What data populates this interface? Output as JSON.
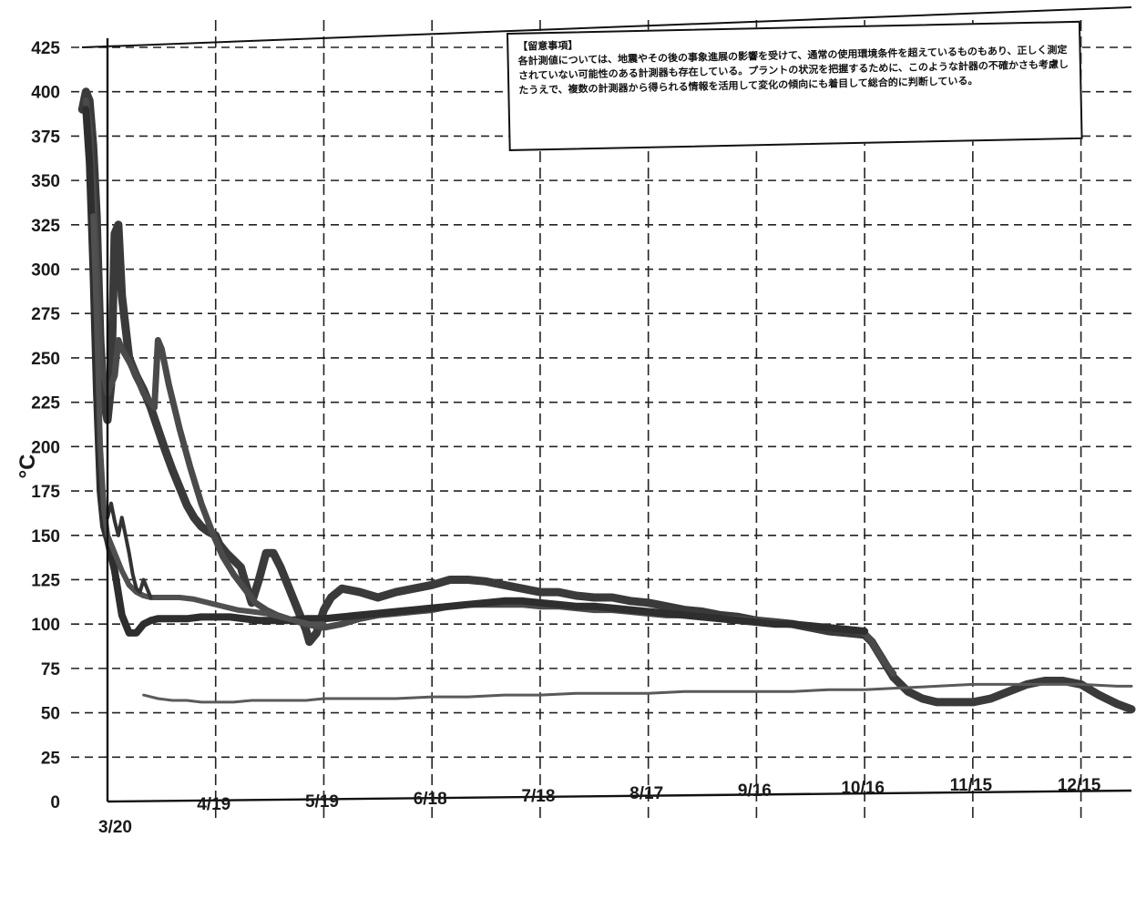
{
  "note": {
    "heading": "【留意事項】",
    "body": "各計測値については、地震やその後の事象進展の影響を受けて、通常の使用環境条件を超えているものもあり、正しく測定されていない可能性のある計測器も存在している。プラントの状況を把握するために、このような計器の不確かさも考慮したうえで、複数の計測器から得られる情報を活用して変化の傾向にも着目して総合的に判断している。"
  },
  "chart_data": {
    "type": "line",
    "title": "",
    "xlabel": "",
    "ylabel": "°C",
    "ylim": [
      0,
      425
    ],
    "yticks": [
      0,
      25,
      50,
      75,
      100,
      125,
      150,
      175,
      200,
      225,
      250,
      275,
      300,
      325,
      350,
      375,
      400,
      425
    ],
    "xlim": [
      0,
      284
    ],
    "x_ticks": [
      {
        "label": "3/20",
        "x": 0
      },
      {
        "label": "4/19",
        "x": 30
      },
      {
        "label": "5/19",
        "x": 60
      },
      {
        "label": "6/18",
        "x": 90
      },
      {
        "label": "7/18",
        "x": 120
      },
      {
        "label": "8/17",
        "x": 150
      },
      {
        "label": "9/16",
        "x": 180
      },
      {
        "label": "10/16",
        "x": 210
      },
      {
        "label": "11/15",
        "x": 240
      },
      {
        "label": "12/15",
        "x": 270
      }
    ],
    "grid": true,
    "series": [
      {
        "color": "#3a3a3a",
        "width": 9,
        "points": [
          [
            -7,
            390
          ],
          [
            -6,
            400
          ],
          [
            -5,
            395
          ],
          [
            -4,
            370
          ],
          [
            -3,
            330
          ],
          [
            -2,
            260
          ],
          [
            -1,
            225
          ],
          [
            0,
            215
          ],
          [
            1,
            235
          ],
          [
            2,
            320
          ],
          [
            3,
            325
          ],
          [
            4,
            285
          ],
          [
            6,
            250
          ],
          [
            8,
            240
          ],
          [
            10,
            232
          ],
          [
            12,
            222
          ],
          [
            14,
            210
          ],
          [
            16,
            198
          ],
          [
            18,
            187
          ],
          [
            20,
            177
          ],
          [
            22,
            167
          ],
          [
            24,
            160
          ],
          [
            26,
            155
          ],
          [
            28,
            152
          ],
          [
            30,
            150
          ],
          [
            31,
            145
          ],
          [
            33,
            140
          ],
          [
            35,
            136
          ],
          [
            37,
            132
          ],
          [
            38,
            125
          ],
          [
            40,
            112
          ],
          [
            42,
            125
          ],
          [
            44,
            140
          ],
          [
            46,
            140
          ],
          [
            48,
            132
          ],
          [
            50,
            122
          ],
          [
            52,
            112
          ],
          [
            54,
            102
          ],
          [
            55,
            97
          ],
          [
            56,
            90
          ],
          [
            58,
            95
          ],
          [
            60,
            108
          ],
          [
            62,
            115
          ],
          [
            65,
            120
          ],
          [
            70,
            118
          ],
          [
            75,
            115
          ],
          [
            80,
            118
          ],
          [
            85,
            120
          ],
          [
            90,
            122
          ],
          [
            95,
            125
          ],
          [
            100,
            125
          ],
          [
            105,
            124
          ],
          [
            110,
            122
          ],
          [
            115,
            120
          ],
          [
            120,
            118
          ],
          [
            125,
            118
          ],
          [
            130,
            116
          ],
          [
            135,
            115
          ],
          [
            140,
            115
          ],
          [
            145,
            113
          ],
          [
            150,
            112
          ],
          [
            155,
            110
          ],
          [
            160,
            108
          ],
          [
            165,
            107
          ],
          [
            170,
            105
          ],
          [
            175,
            104
          ],
          [
            180,
            102
          ],
          [
            185,
            101
          ],
          [
            190,
            100
          ],
          [
            195,
            98
          ],
          [
            200,
            96
          ],
          [
            205,
            95
          ],
          [
            210,
            94
          ],
          [
            212,
            90
          ],
          [
            215,
            80
          ],
          [
            218,
            70
          ],
          [
            222,
            62
          ],
          [
            226,
            58
          ],
          [
            230,
            56
          ],
          [
            235,
            56
          ],
          [
            240,
            56
          ],
          [
            245,
            58
          ],
          [
            250,
            62
          ],
          [
            255,
            66
          ],
          [
            260,
            68
          ],
          [
            265,
            68
          ],
          [
            270,
            66
          ],
          [
            275,
            60
          ],
          [
            280,
            55
          ],
          [
            284,
            52
          ]
        ]
      },
      {
        "color": "#4a4a4a",
        "width": 7,
        "points": [
          [
            -6,
            395
          ],
          [
            -5,
            380
          ],
          [
            -4,
            345
          ],
          [
            -3,
            300
          ],
          [
            -2,
            250
          ],
          [
            0,
            230
          ],
          [
            2,
            240
          ],
          [
            3,
            260
          ],
          [
            4,
            255
          ],
          [
            6,
            248
          ],
          [
            8,
            240
          ],
          [
            10,
            230
          ],
          [
            13,
            222
          ],
          [
            14,
            260
          ],
          [
            15,
            255
          ],
          [
            17,
            235
          ],
          [
            20,
            210
          ],
          [
            23,
            188
          ],
          [
            26,
            168
          ],
          [
            29,
            152
          ],
          [
            32,
            138
          ],
          [
            35,
            128
          ],
          [
            38,
            120
          ],
          [
            41,
            112
          ],
          [
            44,
            108
          ],
          [
            47,
            105
          ],
          [
            50,
            103
          ],
          [
            55,
            100
          ],
          [
            60,
            98
          ],
          [
            65,
            100
          ],
          [
            70,
            103
          ],
          [
            75,
            105
          ],
          [
            80,
            106
          ],
          [
            85,
            107
          ],
          [
            90,
            108
          ],
          [
            95,
            110
          ],
          [
            100,
            111
          ],
          [
            105,
            111
          ],
          [
            110,
            111
          ],
          [
            115,
            111
          ],
          [
            120,
            110
          ],
          [
            125,
            110
          ],
          [
            130,
            109
          ],
          [
            135,
            108
          ],
          [
            140,
            108
          ],
          [
            145,
            107
          ],
          [
            150,
            106
          ],
          [
            155,
            105
          ],
          [
            160,
            105
          ],
          [
            165,
            104
          ],
          [
            170,
            103
          ],
          [
            175,
            103
          ],
          [
            180,
            102
          ],
          [
            185,
            101
          ],
          [
            190,
            100
          ],
          [
            195,
            99
          ],
          [
            200,
            98
          ],
          [
            205,
            97
          ],
          [
            210,
            95
          ],
          [
            212,
            90
          ],
          [
            215,
            80
          ],
          [
            218,
            72
          ]
        ]
      },
      {
        "color": "#2e2e2e",
        "width": 8,
        "points": [
          [
            -6,
            390
          ],
          [
            -5,
            360
          ],
          [
            -4,
            300
          ],
          [
            -3,
            230
          ],
          [
            -2,
            175
          ],
          [
            -1,
            155
          ],
          [
            0,
            148
          ],
          [
            2,
            130
          ],
          [
            4,
            105
          ],
          [
            6,
            95
          ],
          [
            8,
            95
          ],
          [
            10,
            100
          ],
          [
            12,
            102
          ],
          [
            14,
            103
          ],
          [
            18,
            103
          ],
          [
            22,
            103
          ],
          [
            26,
            104
          ],
          [
            30,
            104
          ],
          [
            34,
            104
          ],
          [
            38,
            103
          ],
          [
            42,
            102
          ],
          [
            46,
            102
          ],
          [
            50,
            102
          ],
          [
            55,
            103
          ],
          [
            60,
            103
          ],
          [
            65,
            104
          ],
          [
            70,
            105
          ],
          [
            75,
            106
          ],
          [
            80,
            107
          ],
          [
            85,
            108
          ],
          [
            90,
            109
          ],
          [
            95,
            110
          ],
          [
            100,
            111
          ],
          [
            105,
            112
          ],
          [
            110,
            113
          ],
          [
            115,
            113
          ],
          [
            120,
            112
          ],
          [
            125,
            111
          ],
          [
            130,
            110
          ],
          [
            135,
            110
          ],
          [
            140,
            109
          ],
          [
            145,
            108
          ],
          [
            150,
            107
          ],
          [
            155,
            106
          ],
          [
            160,
            105
          ],
          [
            165,
            104
          ],
          [
            170,
            103
          ],
          [
            175,
            102
          ],
          [
            180,
            101
          ],
          [
            185,
            100
          ],
          [
            190,
            100
          ],
          [
            195,
            99
          ],
          [
            200,
            98
          ],
          [
            205,
            97
          ],
          [
            210,
            96
          ]
        ]
      },
      {
        "color": "#505050",
        "width": 6,
        "points": [
          [
            -4,
            330
          ],
          [
            -3,
            270
          ],
          [
            -2,
            200
          ],
          [
            -1,
            165
          ],
          [
            0,
            150
          ],
          [
            2,
            140
          ],
          [
            4,
            130
          ],
          [
            6,
            122
          ],
          [
            8,
            118
          ],
          [
            10,
            116
          ],
          [
            12,
            115
          ],
          [
            16,
            115
          ],
          [
            20,
            115
          ],
          [
            24,
            114
          ],
          [
            28,
            112
          ],
          [
            32,
            110
          ],
          [
            36,
            108
          ],
          [
            40,
            107
          ],
          [
            44,
            106
          ],
          [
            48,
            104
          ],
          [
            52,
            102
          ],
          [
            56,
            100
          ],
          [
            60,
            100
          ]
        ]
      },
      {
        "color": "#333333",
        "width": 4,
        "points": [
          [
            0,
            160
          ],
          [
            1,
            168
          ],
          [
            2,
            158
          ],
          [
            3,
            150
          ],
          [
            4,
            160
          ],
          [
            5,
            150
          ],
          [
            6,
            140
          ],
          [
            7,
            128
          ],
          [
            8,
            120
          ],
          [
            9,
            118
          ],
          [
            10,
            125
          ],
          [
            11,
            120
          ],
          [
            12,
            115
          ]
        ]
      },
      {
        "color": "#5a5a5a",
        "width": 3,
        "points": [
          [
            10,
            60
          ],
          [
            14,
            58
          ],
          [
            18,
            57
          ],
          [
            22,
            57
          ],
          [
            26,
            56
          ],
          [
            30,
            56
          ],
          [
            35,
            56
          ],
          [
            40,
            57
          ],
          [
            45,
            57
          ],
          [
            50,
            57
          ],
          [
            55,
            57
          ],
          [
            60,
            58
          ],
          [
            70,
            58
          ],
          [
            80,
            58
          ],
          [
            90,
            59
          ],
          [
            100,
            59
          ],
          [
            110,
            60
          ],
          [
            120,
            60
          ],
          [
            130,
            61
          ],
          [
            140,
            61
          ],
          [
            150,
            61
          ],
          [
            160,
            62
          ],
          [
            170,
            62
          ],
          [
            180,
            62
          ],
          [
            190,
            62
          ],
          [
            200,
            63
          ],
          [
            210,
            63
          ],
          [
            220,
            64
          ],
          [
            230,
            65
          ],
          [
            240,
            66
          ],
          [
            250,
            66
          ],
          [
            260,
            66
          ],
          [
            270,
            66
          ],
          [
            280,
            65
          ],
          [
            284,
            65
          ]
        ]
      }
    ]
  }
}
